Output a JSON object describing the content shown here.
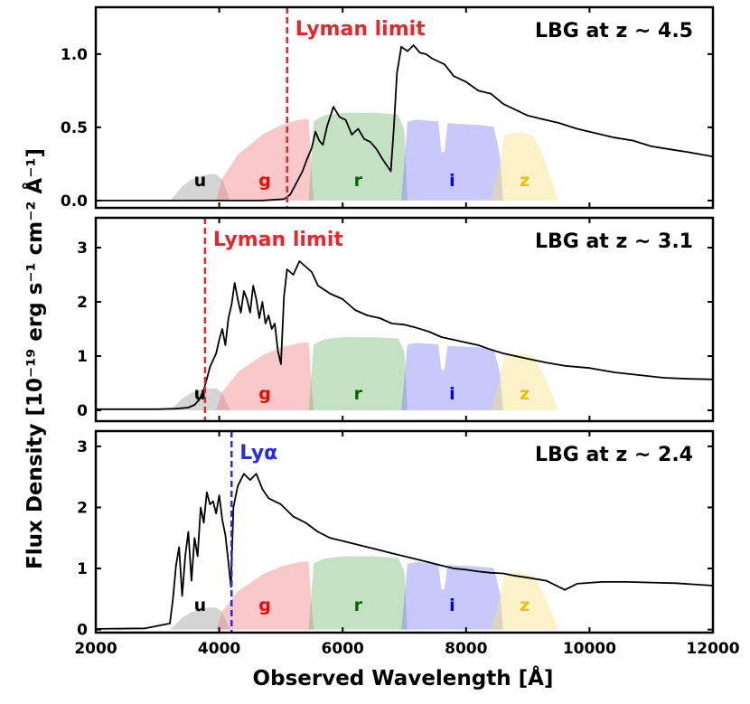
{
  "chart_data": {
    "type": "line",
    "xlabel": "Observed Wavelength [Å]",
    "ylabel": "Flux Density [10⁻¹⁹ erg s⁻¹ cm⁻² Å⁻¹]",
    "xlim": [
      2000,
      12000
    ],
    "xticks": [
      2000,
      4000,
      6000,
      8000,
      10000,
      12000
    ],
    "colors": {
      "spectrum": "#000000",
      "lyman_limit": "#e8262b",
      "lya": "#2a2af0",
      "u": "#999999",
      "g": "#f07d7d",
      "r": "#72b872",
      "i": "#7b7bf2",
      "z": "#f5e37a"
    },
    "bands": [
      {
        "name": "u",
        "label_color": "#000000",
        "profile": [
          [
            3200,
            0
          ],
          [
            3280,
            0.06
          ],
          [
            3400,
            0.16
          ],
          [
            3550,
            0.24
          ],
          [
            3700,
            0.28
          ],
          [
            3850,
            0.3
          ],
          [
            3950,
            0.3
          ],
          [
            4050,
            0.24
          ],
          [
            4120,
            0.1
          ],
          [
            4180,
            0
          ]
        ]
      },
      {
        "name": "g",
        "label_color": "#ff0000",
        "profile": [
          [
            3950,
            0
          ],
          [
            4050,
            0.25
          ],
          [
            4300,
            0.52
          ],
          [
            4700,
            0.75
          ],
          [
            5000,
            0.86
          ],
          [
            5300,
            0.92
          ],
          [
            5450,
            0.93
          ],
          [
            5500,
            0.3
          ],
          [
            5530,
            0
          ]
        ]
      },
      {
        "name": "r",
        "label_color": "#006400",
        "profile": [
          [
            5450,
            0
          ],
          [
            5530,
            0.9
          ],
          [
            5700,
            0.97
          ],
          [
            6000,
            1.0
          ],
          [
            6500,
            1.0
          ],
          [
            6900,
            0.98
          ],
          [
            7000,
            0.8
          ],
          [
            7050,
            0
          ]
        ]
      },
      {
        "name": "i",
        "label_color": "#0000ff",
        "profile": [
          [
            6950,
            0
          ],
          [
            7050,
            0.9
          ],
          [
            7200,
            0.92
          ],
          [
            7550,
            0.9
          ],
          [
            7600,
            0.55
          ],
          [
            7650,
            0.55
          ],
          [
            7700,
            0.88
          ],
          [
            8200,
            0.86
          ],
          [
            8450,
            0.84
          ],
          [
            8550,
            0.5
          ],
          [
            8600,
            0
          ]
        ]
      },
      {
        "name": "z",
        "label_color": "#e6c200",
        "profile": [
          [
            8400,
            0
          ],
          [
            8550,
            0.45
          ],
          [
            8620,
            0.75
          ],
          [
            8900,
            0.78
          ],
          [
            9100,
            0.73
          ],
          [
            9250,
            0.5
          ],
          [
            9400,
            0.2
          ],
          [
            9500,
            0
          ]
        ]
      }
    ],
    "panels": [
      {
        "redshift_label": "LBG at z ~ 4.5",
        "ylim": [
          -0.05,
          1.32
        ],
        "yticks": [
          0.0,
          0.5,
          1.0
        ],
        "ytick_labels": [
          "0.0",
          "0.5",
          "1.0"
        ],
        "band_scale": 0.6,
        "line": {
          "x": 5100,
          "label": "Lyman limit",
          "kind": "lyman_limit"
        },
        "spectrum": [
          [
            2000,
            0
          ],
          [
            4700,
            0
          ],
          [
            5050,
            0.01
          ],
          [
            5150,
            0.04
          ],
          [
            5250,
            0.12
          ],
          [
            5350,
            0.2
          ],
          [
            5420,
            0.28
          ],
          [
            5500,
            0.36
          ],
          [
            5560,
            0.47
          ],
          [
            5620,
            0.41
          ],
          [
            5680,
            0.38
          ],
          [
            5750,
            0.51
          ],
          [
            5850,
            0.64
          ],
          [
            5950,
            0.57
          ],
          [
            6050,
            0.55
          ],
          [
            6150,
            0.45
          ],
          [
            6250,
            0.49
          ],
          [
            6350,
            0.42
          ],
          [
            6450,
            0.4
          ],
          [
            6550,
            0.35
          ],
          [
            6650,
            0.28
          ],
          [
            6780,
            0.2
          ],
          [
            6830,
            0.5
          ],
          [
            6880,
            0.87
          ],
          [
            6950,
            1.05
          ],
          [
            7050,
            1.02
          ],
          [
            7150,
            1.06
          ],
          [
            7250,
            1.01
          ],
          [
            7350,
            1.0
          ],
          [
            7450,
            0.97
          ],
          [
            7550,
            0.95
          ],
          [
            7650,
            0.93
          ],
          [
            7800,
            0.85
          ],
          [
            8000,
            0.81
          ],
          [
            8200,
            0.75
          ],
          [
            8400,
            0.73
          ],
          [
            8600,
            0.66
          ],
          [
            8800,
            0.62
          ],
          [
            9000,
            0.58
          ],
          [
            9200,
            0.56
          ],
          [
            9500,
            0.53
          ],
          [
            9800,
            0.49
          ],
          [
            10100,
            0.46
          ],
          [
            10400,
            0.43
          ],
          [
            10700,
            0.41
          ],
          [
            11000,
            0.37
          ],
          [
            11300,
            0.35
          ],
          [
            11600,
            0.33
          ],
          [
            12000,
            0.3
          ]
        ]
      },
      {
        "redshift_label": "LBG at z ~ 3.1",
        "ylim": [
          -0.2,
          3.55
        ],
        "yticks": [
          0,
          1,
          2,
          3
        ],
        "ytick_labels": [
          "0",
          "1",
          "2",
          "3"
        ],
        "band_scale": 1.35,
        "line": {
          "x": 3770,
          "label": "Lyman limit",
          "kind": "lyman_limit"
        },
        "spectrum": [
          [
            2000,
            0.02
          ],
          [
            3000,
            0.02
          ],
          [
            3300,
            0.03
          ],
          [
            3500,
            0.05
          ],
          [
            3600,
            0.1
          ],
          [
            3680,
            0.2
          ],
          [
            3750,
            0.38
          ],
          [
            3800,
            0.58
          ],
          [
            3850,
            0.8
          ],
          [
            3950,
            1.05
          ],
          [
            4000,
            1.3
          ],
          [
            4050,
            1.5
          ],
          [
            4100,
            1.2
          ],
          [
            4150,
            1.7
          ],
          [
            4200,
            1.95
          ],
          [
            4250,
            2.35
          ],
          [
            4300,
            2.05
          ],
          [
            4350,
            1.8
          ],
          [
            4400,
            2.2
          ],
          [
            4450,
            2.05
          ],
          [
            4500,
            1.8
          ],
          [
            4550,
            2.3
          ],
          [
            4600,
            2.05
          ],
          [
            4650,
            1.7
          ],
          [
            4700,
            2.0
          ],
          [
            4750,
            1.6
          ],
          [
            4800,
            1.75
          ],
          [
            4850,
            1.5
          ],
          [
            4900,
            1.6
          ],
          [
            4950,
            1.1
          ],
          [
            5000,
            0.85
          ],
          [
            5050,
            2.1
          ],
          [
            5100,
            2.6
          ],
          [
            5200,
            2.5
          ],
          [
            5300,
            2.75
          ],
          [
            5400,
            2.65
          ],
          [
            5500,
            2.55
          ],
          [
            5600,
            2.3
          ],
          [
            5800,
            2.15
          ],
          [
            6000,
            2.05
          ],
          [
            6200,
            1.85
          ],
          [
            6400,
            1.75
          ],
          [
            6600,
            1.7
          ],
          [
            6800,
            1.6
          ],
          [
            7000,
            1.58
          ],
          [
            7200,
            1.52
          ],
          [
            7400,
            1.45
          ],
          [
            7600,
            1.35
          ],
          [
            7800,
            1.3
          ],
          [
            8000,
            1.25
          ],
          [
            8200,
            1.2
          ],
          [
            8400,
            1.12
          ],
          [
            8600,
            1.05
          ],
          [
            8800,
            1.0
          ],
          [
            9000,
            0.95
          ],
          [
            9300,
            0.88
          ],
          [
            9600,
            0.82
          ],
          [
            10000,
            0.78
          ],
          [
            10400,
            0.7
          ],
          [
            10800,
            0.65
          ],
          [
            11200,
            0.6
          ],
          [
            11600,
            0.58
          ],
          [
            12000,
            0.57
          ]
        ]
      },
      {
        "redshift_label": "LBG at z ~ 2.4",
        "ylim": [
          -0.05,
          3.25
        ],
        "yticks": [
          0,
          1,
          2,
          3
        ],
        "ytick_labels": [
          "0",
          "1",
          "2",
          "3"
        ],
        "band_scale": 1.2,
        "line": {
          "x": 4200,
          "label": "Lyα",
          "kind": "lya"
        },
        "spectrum": [
          [
            2000,
            0.01
          ],
          [
            2800,
            0.02
          ],
          [
            3200,
            0.1
          ],
          [
            3250,
            0.5
          ],
          [
            3300,
            1.05
          ],
          [
            3350,
            1.35
          ],
          [
            3400,
            0.55
          ],
          [
            3450,
            1.2
          ],
          [
            3500,
            1.6
          ],
          [
            3550,
            0.8
          ],
          [
            3600,
            1.5
          ],
          [
            3650,
            1.2
          ],
          [
            3700,
            2.0
          ],
          [
            3750,
            1.75
          ],
          [
            3800,
            2.25
          ],
          [
            3850,
            2.05
          ],
          [
            3900,
            2.1
          ],
          [
            3950,
            1.9
          ],
          [
            4000,
            2.2
          ],
          [
            4050,
            1.8
          ],
          [
            4100,
            1.55
          ],
          [
            4150,
            1.1
          ],
          [
            4190,
            0.7
          ],
          [
            4230,
            2.0
          ],
          [
            4300,
            2.35
          ],
          [
            4400,
            2.55
          ],
          [
            4500,
            2.45
          ],
          [
            4600,
            2.55
          ],
          [
            4700,
            2.3
          ],
          [
            4800,
            2.15
          ],
          [
            5000,
            2.05
          ],
          [
            5200,
            1.85
          ],
          [
            5400,
            1.75
          ],
          [
            5600,
            1.6
          ],
          [
            5800,
            1.5
          ],
          [
            6000,
            1.45
          ],
          [
            6200,
            1.4
          ],
          [
            6400,
            1.35
          ],
          [
            6600,
            1.3
          ],
          [
            6800,
            1.25
          ],
          [
            7000,
            1.2
          ],
          [
            7200,
            1.15
          ],
          [
            7400,
            1.1
          ],
          [
            7600,
            1.05
          ],
          [
            7800,
            1.0
          ],
          [
            8000,
            0.98
          ],
          [
            8200,
            0.95
          ],
          [
            8400,
            0.93
          ],
          [
            8600,
            0.92
          ],
          [
            8800,
            0.88
          ],
          [
            9000,
            0.85
          ],
          [
            9300,
            0.8
          ],
          [
            9500,
            0.7
          ],
          [
            9600,
            0.65
          ],
          [
            9800,
            0.75
          ],
          [
            10200,
            0.78
          ],
          [
            10600,
            0.78
          ],
          [
            11000,
            0.77
          ],
          [
            11400,
            0.76
          ],
          [
            12000,
            0.72
          ]
        ]
      }
    ]
  }
}
